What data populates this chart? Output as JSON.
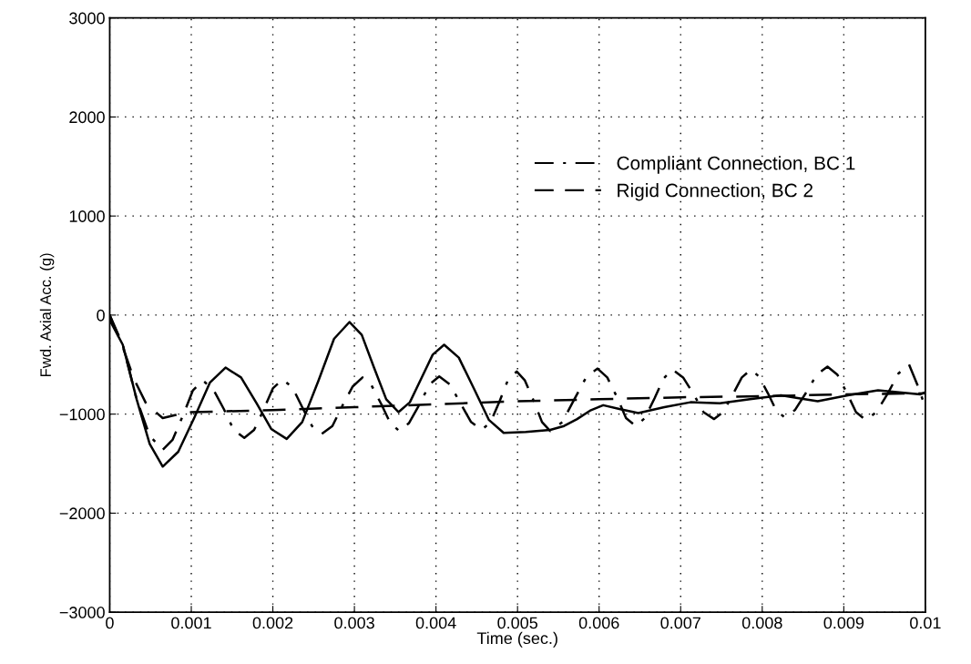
{
  "chart_data": {
    "type": "line",
    "xlabel": "Time (sec.)",
    "ylabel": "Fwd. Axial Acc. (g)",
    "xlim": [
      0,
      0.01
    ],
    "ylim": [
      -3000,
      3000
    ],
    "xticks": [
      0,
      0.001,
      0.002,
      0.003,
      0.004,
      0.005,
      0.006,
      0.007,
      0.008,
      0.009,
      0.01
    ],
    "yticks": [
      {
        "value": -3000,
        "label": "−3000"
      },
      {
        "value": -2000,
        "label": "−2000"
      },
      {
        "value": -1000,
        "label": "−1000"
      },
      0,
      1000,
      2000,
      3000
    ],
    "grid": true,
    "legend": "right",
    "series": [
      {
        "name": "Compliant Connection, BC 1",
        "color": "#000000",
        "line_style": "dashdot",
        "x": [
          0,
          0.00016,
          0.00033,
          0.00049,
          0.00065,
          0.00077,
          0.0009,
          0.00102,
          0.00114,
          0.00127,
          0.0014,
          0.00152,
          0.00165,
          0.00177,
          0.00189,
          0.002,
          0.00212,
          0.00224,
          0.00236,
          0.00248,
          0.0026,
          0.00273,
          0.00285,
          0.00298,
          0.0031,
          0.00321,
          0.00333,
          0.00344,
          0.00355,
          0.00367,
          0.0038,
          0.00392,
          0.00404,
          0.00417,
          0.0043,
          0.00443,
          0.00456,
          0.00467,
          0.00478,
          0.00488,
          0.00499,
          0.00509,
          0.0052,
          0.0053,
          0.0054,
          0.00555,
          0.00569,
          0.00584,
          0.00598,
          0.0061,
          0.00622,
          0.00633,
          0.00645,
          0.00656,
          0.00668,
          0.00679,
          0.0069,
          0.00703,
          0.00716,
          0.00728,
          0.00741,
          0.00752,
          0.00764,
          0.00775,
          0.00786,
          0.00796,
          0.00807,
          0.00817,
          0.00827,
          0.0084,
          0.00854,
          0.00867,
          0.0088,
          0.00892,
          0.00904,
          0.00915,
          0.00927,
          0.0094,
          0.00954,
          0.00967,
          0.0098,
          0.0099,
          0.01
        ],
        "values": [
          0,
          -300,
          -850,
          -1220,
          -1360,
          -1260,
          -1010,
          -760,
          -660,
          -750,
          -950,
          -1160,
          -1240,
          -1160,
          -950,
          -740,
          -650,
          -730,
          -930,
          -1120,
          -1200,
          -1120,
          -920,
          -720,
          -630,
          -710,
          -900,
          -1090,
          -1170,
          -1090,
          -900,
          -700,
          -620,
          -700,
          -890,
          -1080,
          -1160,
          -1080,
          -870,
          -660,
          -570,
          -660,
          -870,
          -1080,
          -1170,
          -1080,
          -860,
          -630,
          -540,
          -630,
          -830,
          -1040,
          -1120,
          -1040,
          -840,
          -640,
          -550,
          -630,
          -800,
          -980,
          -1050,
          -980,
          -800,
          -630,
          -550,
          -620,
          -790,
          -960,
          -1030,
          -960,
          -780,
          -600,
          -520,
          -600,
          -790,
          -980,
          -1060,
          -980,
          -790,
          -590,
          -500,
          -700,
          -930
        ]
      },
      {
        "name": "Rigid Connection, BC 2",
        "color": "#000000",
        "line_style": "dashed",
        "x": [
          0,
          0.00015,
          0.0003,
          0.00045,
          0.00065,
          0.0008,
          0.001,
          0.002,
          0.003,
          0.004,
          0.005,
          0.006,
          0.007,
          0.008,
          0.009,
          0.01
        ],
        "values": [
          0,
          -300,
          -650,
          -900,
          -1040,
          -1010,
          -980,
          -960,
          -930,
          -900,
          -870,
          -850,
          -830,
          -820,
          -800,
          -790
        ]
      },
      {
        "color": "#000000",
        "line_style": "solid",
        "x": [
          0,
          0.00016,
          0.00033,
          0.00049,
          0.00065,
          0.00084,
          0.00104,
          0.00123,
          0.00142,
          0.00161,
          0.0018,
          0.00198,
          0.00217,
          0.00236,
          0.00256,
          0.00275,
          0.00294,
          0.00309,
          0.00324,
          0.00339,
          0.00354,
          0.00368,
          0.00382,
          0.00396,
          0.0041,
          0.00428,
          0.00447,
          0.00465,
          0.00483,
          0.0051,
          0.0054,
          0.00557,
          0.00573,
          0.0059,
          0.00605,
          0.00626,
          0.00648,
          0.0068,
          0.00712,
          0.00748,
          0.00785,
          0.00823,
          0.00845,
          0.00868,
          0.00905,
          0.00942,
          0.00968,
          0.00994,
          0.01
        ],
        "values": [
          -50,
          -300,
          -850,
          -1300,
          -1530,
          -1380,
          -1030,
          -680,
          -530,
          -630,
          -890,
          -1150,
          -1250,
          -1080,
          -660,
          -240,
          -70,
          -200,
          -530,
          -850,
          -980,
          -880,
          -640,
          -400,
          -300,
          -430,
          -750,
          -1060,
          -1190,
          -1180,
          -1160,
          -1120,
          -1050,
          -960,
          -910,
          -950,
          -990,
          -930,
          -880,
          -890,
          -850,
          -810,
          -840,
          -870,
          -810,
          -760,
          -780,
          -800,
          -780
        ]
      }
    ]
  }
}
